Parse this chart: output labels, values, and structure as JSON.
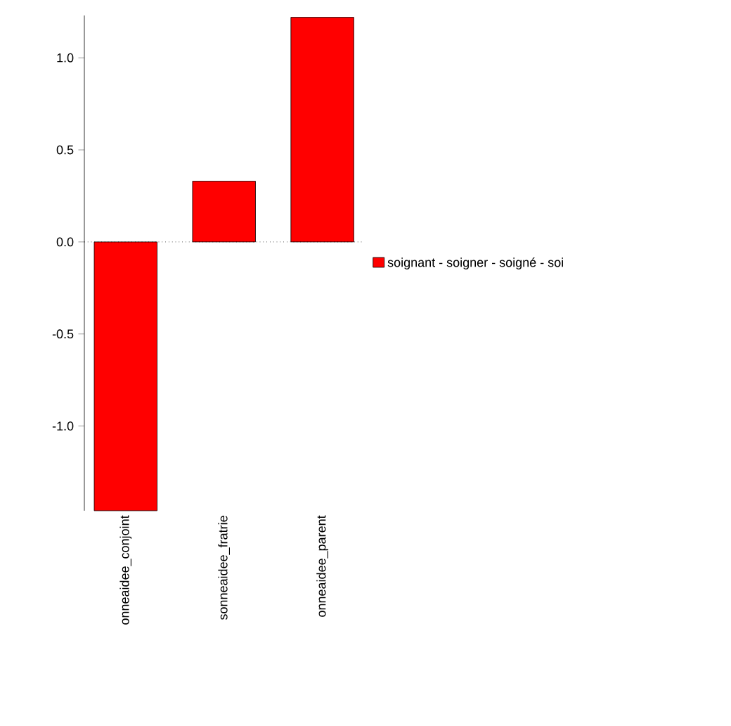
{
  "chart_data": {
    "type": "bar",
    "categories": [
      "onneaidee_conjoint",
      "sonneaidee_fratrie",
      "onneaidee_parent"
    ],
    "series": [
      {
        "name": "soignant - soigner - soigné - soi",
        "color": "#ff0000",
        "values": [
          -1.46,
          0.33,
          1.22
        ]
      }
    ],
    "ylim": [
      -1.46,
      1.23
    ],
    "yticks": [
      {
        "value": -1,
        "label": "-1.0"
      },
      {
        "value": -0.5,
        "label": "-0.5"
      },
      {
        "value": 0,
        "label": "0.0"
      },
      {
        "value": 0.5,
        "label": "0.5"
      },
      {
        "value": 1,
        "label": "1.0"
      }
    ],
    "ref_lines": [
      {
        "axis": "y",
        "value": 0,
        "line_style": "dotted"
      }
    ],
    "legend": "right",
    "grid": false
  }
}
